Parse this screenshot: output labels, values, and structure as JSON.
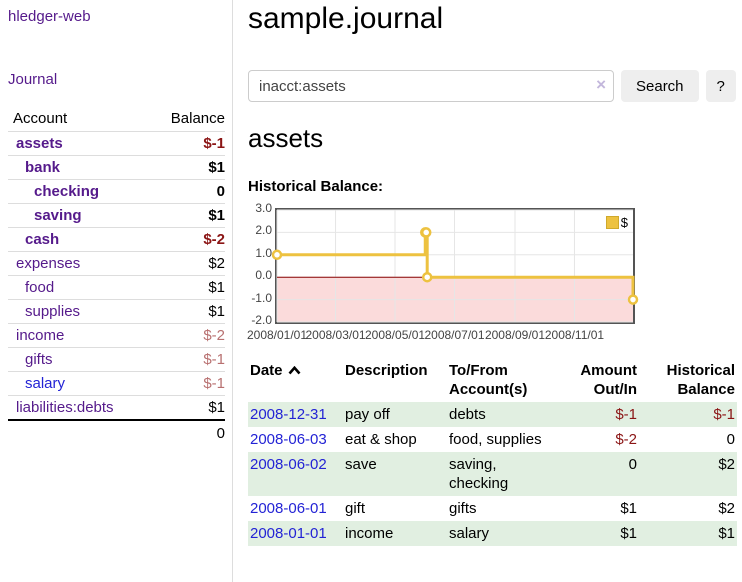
{
  "app": {
    "title": "hledger-web"
  },
  "sidebar": {
    "journal_link": "Journal",
    "table": {
      "headers": [
        "Account",
        "Balance"
      ],
      "rows": [
        {
          "account": "assets",
          "level": 1,
          "bold": true,
          "balance": "$-1",
          "balance_class": "neg-strong"
        },
        {
          "account": "bank",
          "level": 2,
          "bold": true,
          "balance": "$1",
          "balance_class": ""
        },
        {
          "account": "checking",
          "level": 3,
          "bold": true,
          "balance": "0",
          "balance_class": ""
        },
        {
          "account": "saving",
          "level": 3,
          "bold": true,
          "balance": "$1",
          "balance_class": ""
        },
        {
          "account": "cash",
          "level": 2,
          "bold": true,
          "balance": "$-2",
          "balance_class": "neg-strong"
        },
        {
          "account": "expenses",
          "level": 1,
          "bold": false,
          "balance": "$2",
          "balance_class": ""
        },
        {
          "account": "food",
          "level": 2,
          "bold": false,
          "balance": "$1",
          "balance_class": ""
        },
        {
          "account": "supplies",
          "level": 2,
          "bold": false,
          "balance": "$1",
          "balance_class": ""
        },
        {
          "account": "income",
          "level": 1,
          "bold": false,
          "balance": "$-2",
          "balance_class": "neg-soft"
        },
        {
          "account": "gifts",
          "level": 2,
          "bold": false,
          "balance": "$-1",
          "balance_class": "neg-soft"
        },
        {
          "account": "salary",
          "level": 2,
          "bold": false,
          "balance": "$-1",
          "balance_class": "neg-soft",
          "link": "blue"
        },
        {
          "account": "liabilities:debts",
          "level": 1,
          "bold": false,
          "balance": "$1",
          "balance_class": ""
        }
      ],
      "total": "0"
    }
  },
  "main": {
    "title": "sample.journal",
    "search": {
      "value": "inacct:assets",
      "clear_icon": "×",
      "button_label": "Search",
      "help_label": "?"
    },
    "account_heading": "assets"
  },
  "chart_data": {
    "type": "line",
    "step": "after",
    "title": "Historical Balance:",
    "series": [
      {
        "name": "$",
        "color": "#edc240",
        "points": [
          [
            "2008-01-01",
            1
          ],
          [
            "2008-06-01",
            2
          ],
          [
            "2008-06-02",
            2
          ],
          [
            "2008-06-03",
            0
          ],
          [
            "2008-12-31",
            -1
          ]
        ]
      }
    ],
    "x_range": [
      "2008-01-01",
      "2008-12-31"
    ],
    "ylim": [
      -2,
      3
    ],
    "y_ticks": [
      "3.0",
      "2.0",
      "1.0",
      "0.0",
      "-1.0",
      "-2.0"
    ],
    "x_ticks": [
      {
        "date": "2008-01-01",
        "label": "2008/01/01"
      },
      {
        "date": "2008-03-01",
        "label": "2008/03/01"
      },
      {
        "date": "2008-05-01",
        "label": "2008/05/01"
      },
      {
        "date": "2008-07-01",
        "label": "2008/07/01"
      },
      {
        "date": "2008-09-01",
        "label": "2008/09/01"
      },
      {
        "date": "2008-11-01",
        "label": "2008/11/01"
      }
    ],
    "legend": {
      "label": "$",
      "position": "top-right"
    },
    "grid": true,
    "zero_line_color": "#8b0000",
    "negative_region": {
      "below": 0,
      "fill": "#fbdbdb"
    }
  },
  "register_table": {
    "headers": {
      "date": "Date",
      "sort_icon": "chevron-up",
      "description": "Description",
      "accounts": "To/From Account(s)",
      "amount": "Amount Out/In",
      "balance": "Historical Balance"
    },
    "rows": [
      {
        "date": "2008-12-31",
        "description": "pay off",
        "accounts": "debts",
        "amount": "$-1",
        "amount_class": "neg-strong",
        "balance": "$-1",
        "balance_class": "neg-strong"
      },
      {
        "date": "2008-06-03",
        "description": "eat & shop",
        "accounts": "food, supplies",
        "amount": "$-2",
        "amount_class": "neg-strong",
        "balance": "0",
        "balance_class": ""
      },
      {
        "date": "2008-06-02",
        "description": "save",
        "accounts": "saving, checking",
        "amount": "0",
        "amount_class": "",
        "balance": "$2",
        "balance_class": ""
      },
      {
        "date": "2008-06-01",
        "description": "gift",
        "accounts": "gifts",
        "amount": "$1",
        "amount_class": "",
        "balance": "$2",
        "balance_class": ""
      },
      {
        "date": "2008-01-01",
        "description": "income",
        "accounts": "salary",
        "amount": "$1",
        "amount_class": "",
        "balance": "$1",
        "balance_class": ""
      }
    ]
  },
  "colors": {
    "link_purple": "#551a8b",
    "link_blue": "#2323d5",
    "negative_strong": "#8b1515",
    "negative_soft": "#b87070",
    "row_stripe_green": "#e1efe1",
    "chart_line_gold": "#edc240",
    "chart_negative_pink": "#fbdbdb",
    "chart_zero_line": "#8b0000",
    "button_gray": "#eeeeee"
  }
}
